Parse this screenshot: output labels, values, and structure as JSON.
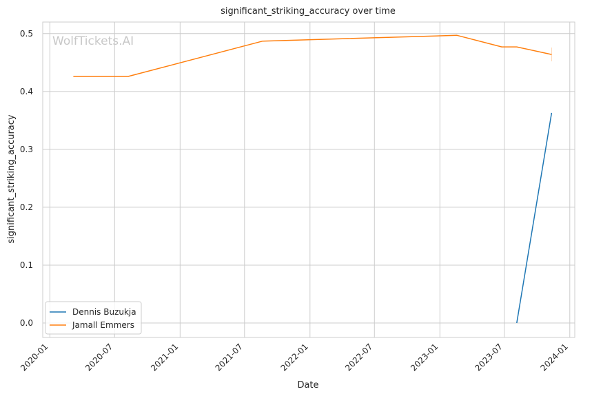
{
  "chart_data": {
    "type": "line",
    "title": "significant_striking_accuracy over time",
    "xlabel": "Date",
    "ylabel": "significant_striking_accuracy",
    "watermark": "WolfTickets.AI",
    "xlim": [
      "2019-12-12",
      "2024-01-15"
    ],
    "ylim": [
      -0.025,
      0.52
    ],
    "x_ticks": [
      "2020-01",
      "2020-07",
      "2021-01",
      "2021-07",
      "2022-01",
      "2022-07",
      "2023-01",
      "2023-07",
      "2024-01"
    ],
    "y_ticks": [
      "0.0",
      "0.1",
      "0.2",
      "0.3",
      "0.4",
      "0.5"
    ],
    "grid": true,
    "legend_position": "lower-left",
    "series": [
      {
        "name": "Dennis Buzukja",
        "color": "#1f77b4",
        "x": [
          "2023-08-05",
          "2023-11-11"
        ],
        "y": [
          0.0,
          0.363
        ]
      },
      {
        "name": "Jamall Emmers",
        "color": "#ff7f0e",
        "x": [
          "2020-03-07",
          "2020-08-08",
          "2021-08-21",
          "2023-02-18",
          "2023-06-24",
          "2023-08-05",
          "2023-11-11"
        ],
        "y": [
          0.426,
          0.426,
          0.487,
          0.497,
          0.477,
          0.477,
          0.464
        ]
      }
    ]
  }
}
